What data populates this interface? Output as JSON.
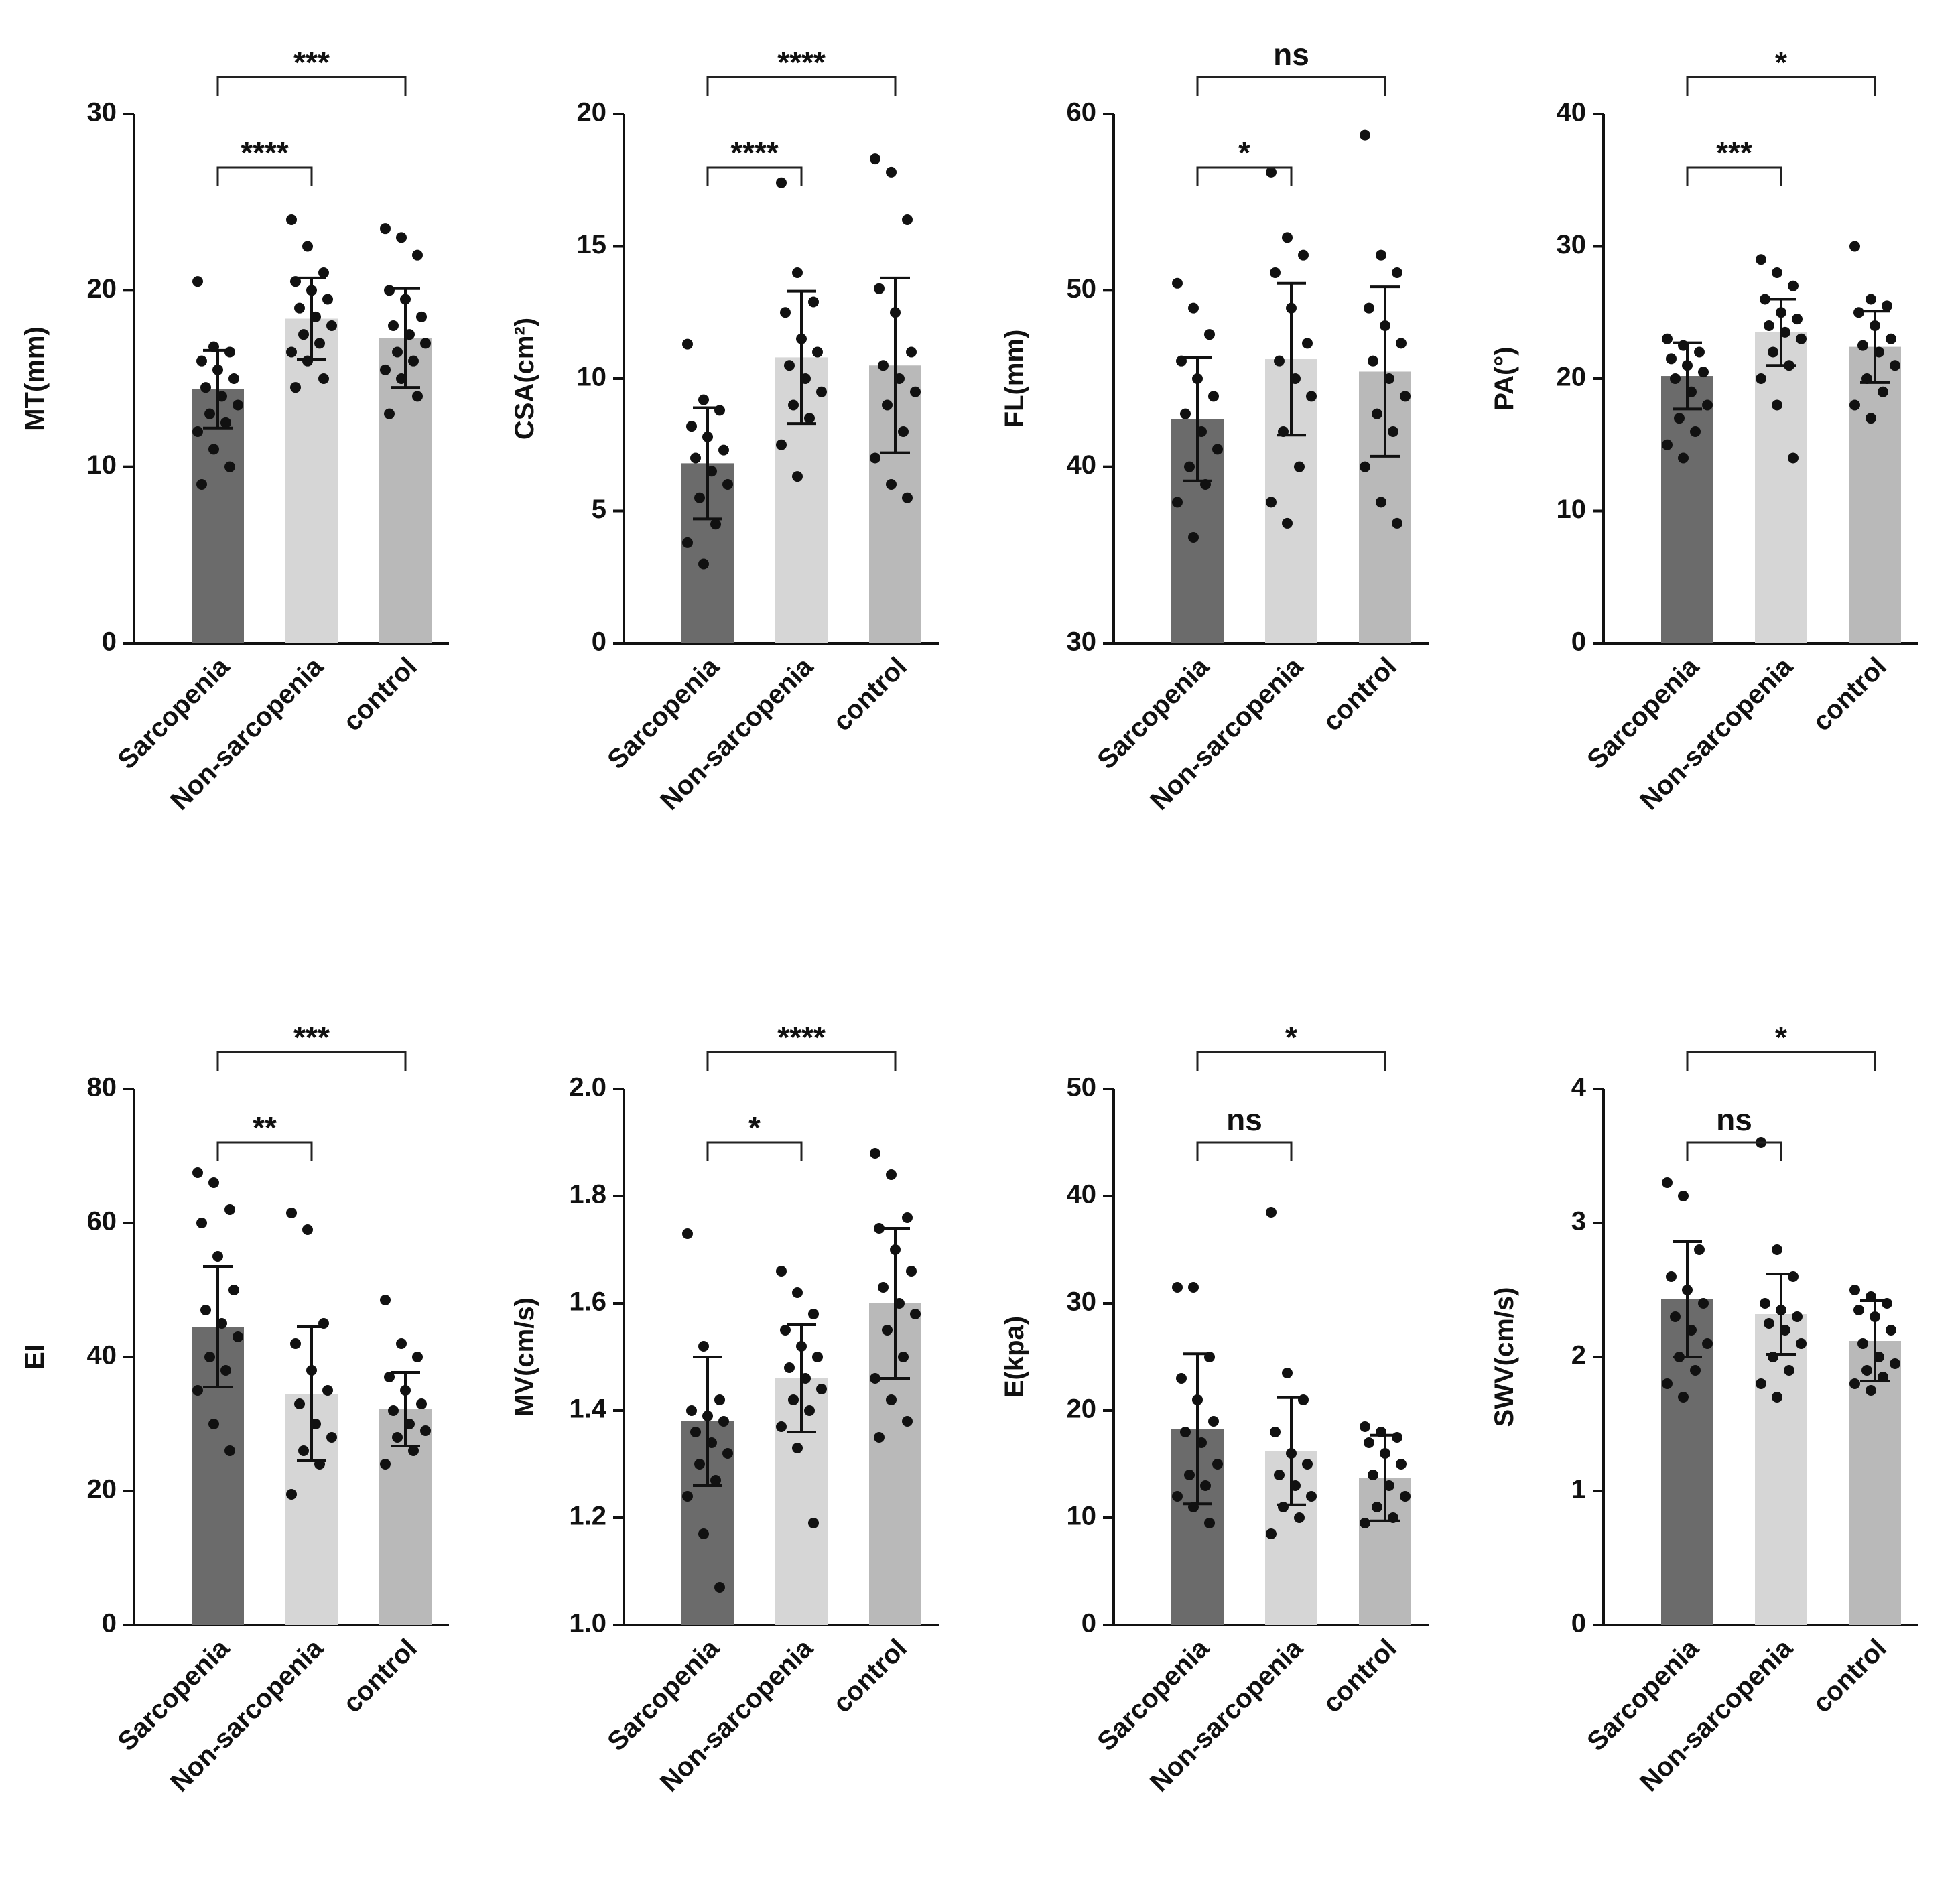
{
  "chart_data": [
    {
      "type": "bar",
      "ylabel": "MT(mm)",
      "categories": [
        "Sarcopenia",
        "Non-sarcopenia",
        "control"
      ],
      "colors": [
        "#6b6b6b",
        "#d6d6d6",
        "#b9b9b9"
      ],
      "values": [
        14.4,
        18.4,
        17.3
      ],
      "errors": [
        2.2,
        2.3,
        2.8
      ],
      "points": [
        [
          20.5,
          16.8,
          16.5,
          16,
          15.5,
          15,
          14.5,
          14,
          13.5,
          13,
          12.5,
          12,
          11,
          10,
          9
        ],
        [
          24,
          22.5,
          21,
          20.5,
          20,
          19.5,
          19,
          18.5,
          18,
          17.5,
          17,
          16.5,
          16,
          15,
          14.5
        ],
        [
          23.5,
          23,
          22,
          20,
          19.5,
          18.5,
          18,
          17.5,
          17,
          16.5,
          16,
          15.5,
          15,
          14,
          13
        ]
      ],
      "ylim": [
        0,
        30
      ],
      "yticks": [
        0,
        10,
        20,
        30
      ],
      "annotations": [
        "****",
        "***"
      ]
    },
    {
      "type": "bar",
      "ylabel": "CSA(cm²)",
      "categories": [
        "Sarcopenia",
        "Non-sarcopenia",
        "control"
      ],
      "colors": [
        "#6b6b6b",
        "#d6d6d6",
        "#b9b9b9"
      ],
      "values": [
        6.8,
        10.8,
        10.5
      ],
      "errors": [
        2.1,
        2.5,
        3.3
      ],
      "points": [
        [
          11.3,
          9.2,
          8.8,
          8.2,
          7.8,
          7.3,
          7,
          6.5,
          6,
          5.5,
          4.5,
          3.8,
          3
        ],
        [
          17.4,
          14,
          12.9,
          12.5,
          11.5,
          11,
          10.5,
          10,
          9.5,
          9,
          8.5,
          7.5,
          6.3
        ],
        [
          18.3,
          17.8,
          16,
          13.4,
          12.5,
          11,
          10.5,
          10,
          9.5,
          9,
          8,
          7,
          6,
          5.5
        ]
      ],
      "ylim": [
        0,
        20
      ],
      "yticks": [
        0,
        5,
        10,
        15,
        20
      ],
      "annotations": [
        "****",
        "****"
      ]
    },
    {
      "type": "bar",
      "ylabel": "FL(mm)",
      "categories": [
        "Sarcopenia",
        "Non-sarcopenia",
        "control"
      ],
      "colors": [
        "#6b6b6b",
        "#d6d6d6",
        "#b9b9b9"
      ],
      "values": [
        42.7,
        46.1,
        45.4
      ],
      "errors": [
        3.5,
        4.3,
        4.8
      ],
      "points": [
        [
          50.4,
          49,
          47.5,
          46,
          45,
          44,
          43,
          42,
          41,
          40,
          39,
          38,
          36
        ],
        [
          56.7,
          53,
          52,
          51,
          49,
          47,
          46,
          45,
          44,
          42,
          40,
          38,
          36.8
        ],
        [
          58.8,
          52,
          51,
          49,
          48,
          47,
          46,
          45,
          44,
          43,
          42,
          40,
          38,
          36.8
        ]
      ],
      "ylim": [
        30,
        60
      ],
      "yticks": [
        30,
        40,
        50,
        60
      ],
      "annotations": [
        "*",
        "ns"
      ]
    },
    {
      "type": "bar",
      "ylabel": "PA(°)",
      "categories": [
        "Sarcopenia",
        "Non-sarcopenia",
        "control"
      ],
      "colors": [
        "#6b6b6b",
        "#d6d6d6",
        "#b9b9b9"
      ],
      "values": [
        20.2,
        23.5,
        22.4
      ],
      "errors": [
        2.5,
        2.5,
        2.7
      ],
      "points": [
        [
          23,
          22.5,
          22,
          21.5,
          21,
          20.5,
          20,
          19,
          18,
          17,
          16,
          15,
          14
        ],
        [
          29,
          28,
          27,
          26,
          25,
          24.5,
          24,
          23.5,
          23,
          22,
          21,
          20,
          18,
          14
        ],
        [
          30,
          26,
          25.5,
          25,
          24,
          23,
          22.5,
          22,
          21,
          20,
          19,
          18,
          17
        ]
      ],
      "ylim": [
        0,
        40
      ],
      "yticks": [
        0,
        10,
        20,
        30,
        40
      ],
      "annotations": [
        "***",
        "*"
      ]
    },
    {
      "type": "bar",
      "ylabel": "EI",
      "categories": [
        "Sarcopenia",
        "Non-sarcopenia",
        "control"
      ],
      "colors": [
        "#6b6b6b",
        "#d6d6d6",
        "#b9b9b9"
      ],
      "values": [
        44.5,
        34.5,
        32.2
      ],
      "errors": [
        9,
        10,
        5.5
      ],
      "points": [
        [
          67.5,
          66,
          62,
          60,
          55,
          50,
          47,
          45,
          43,
          40,
          38,
          35,
          30,
          26
        ],
        [
          61.5,
          59,
          45,
          42,
          38,
          35,
          33,
          30,
          28,
          26,
          24,
          19.5
        ],
        [
          48.5,
          42,
          40,
          37,
          35,
          33,
          32,
          30,
          29,
          28,
          26,
          24
        ]
      ],
      "ylim": [
        0,
        80
      ],
      "yticks": [
        0,
        20,
        40,
        60,
        80
      ],
      "annotations": [
        "**",
        "***"
      ]
    },
    {
      "type": "bar",
      "ylabel": "MV(cm/s)",
      "categories": [
        "Sarcopenia",
        "Non-sarcopenia",
        "control"
      ],
      "colors": [
        "#6b6b6b",
        "#d6d6d6",
        "#b9b9b9"
      ],
      "values": [
        1.38,
        1.46,
        1.6
      ],
      "errors": [
        0.12,
        0.1,
        0.14
      ],
      "points": [
        [
          1.73,
          1.52,
          1.42,
          1.4,
          1.39,
          1.38,
          1.36,
          1.34,
          1.32,
          1.3,
          1.27,
          1.24,
          1.17,
          1.07
        ],
        [
          1.66,
          1.62,
          1.58,
          1.55,
          1.52,
          1.5,
          1.48,
          1.46,
          1.44,
          1.42,
          1.4,
          1.37,
          1.33,
          1.19
        ],
        [
          1.88,
          1.84,
          1.76,
          1.74,
          1.7,
          1.66,
          1.63,
          1.6,
          1.58,
          1.55,
          1.5,
          1.46,
          1.42,
          1.38,
          1.35
        ]
      ],
      "ylim": [
        1,
        2
      ],
      "yticks": [
        {
          "value": 1,
          "label": "1.0"
        },
        1.2,
        1.4,
        1.6,
        1.8,
        {
          "value": 2,
          "label": "2.0"
        }
      ],
      "annotations": [
        "*",
        "****"
      ]
    },
    {
      "type": "bar",
      "ylabel": "E(kpa)",
      "categories": [
        "Sarcopenia",
        "Non-sarcopenia",
        "control"
      ],
      "colors": [
        "#6b6b6b",
        "#d6d6d6",
        "#b9b9b9"
      ],
      "values": [
        18.3,
        16.2,
        13.7
      ],
      "errors": [
        7,
        5,
        4
      ],
      "points": [
        [
          31.5,
          31.5,
          25,
          23,
          21,
          19,
          18,
          17,
          15,
          14,
          13,
          12,
          11,
          9.5
        ],
        [
          38.5,
          23.5,
          21,
          18,
          16,
          15,
          14,
          13,
          12,
          11,
          10,
          8.5
        ],
        [
          18.5,
          18,
          17.5,
          17,
          16,
          15,
          14,
          13,
          12,
          11,
          10,
          9.5
        ]
      ],
      "ylim": [
        0,
        50
      ],
      "yticks": [
        0,
        10,
        20,
        30,
        40,
        50
      ],
      "annotations": [
        "ns",
        "*"
      ]
    },
    {
      "type": "bar",
      "ylabel": "SWV(cm/s)",
      "categories": [
        "Sarcopenia",
        "Non-sarcopenia",
        "control"
      ],
      "colors": [
        "#6b6b6b",
        "#d6d6d6",
        "#b9b9b9"
      ],
      "values": [
        2.43,
        2.32,
        2.12
      ],
      "errors": [
        0.43,
        0.3,
        0.3
      ],
      "points": [
        [
          3.3,
          3.2,
          2.8,
          2.6,
          2.5,
          2.4,
          2.3,
          2.2,
          2.1,
          2,
          1.9,
          1.8,
          1.7
        ],
        [
          3.6,
          2.8,
          2.6,
          2.4,
          2.35,
          2.3,
          2.25,
          2.2,
          2.1,
          2,
          1.9,
          1.8,
          1.7
        ],
        [
          2.5,
          2.45,
          2.4,
          2.35,
          2.3,
          2.2,
          2.1,
          2,
          1.95,
          1.9,
          1.85,
          1.8,
          1.75
        ]
      ],
      "ylim": [
        0,
        4
      ],
      "yticks": [
        0,
        1,
        2,
        3,
        4
      ],
      "annotations": [
        "ns",
        "*"
      ]
    }
  ]
}
